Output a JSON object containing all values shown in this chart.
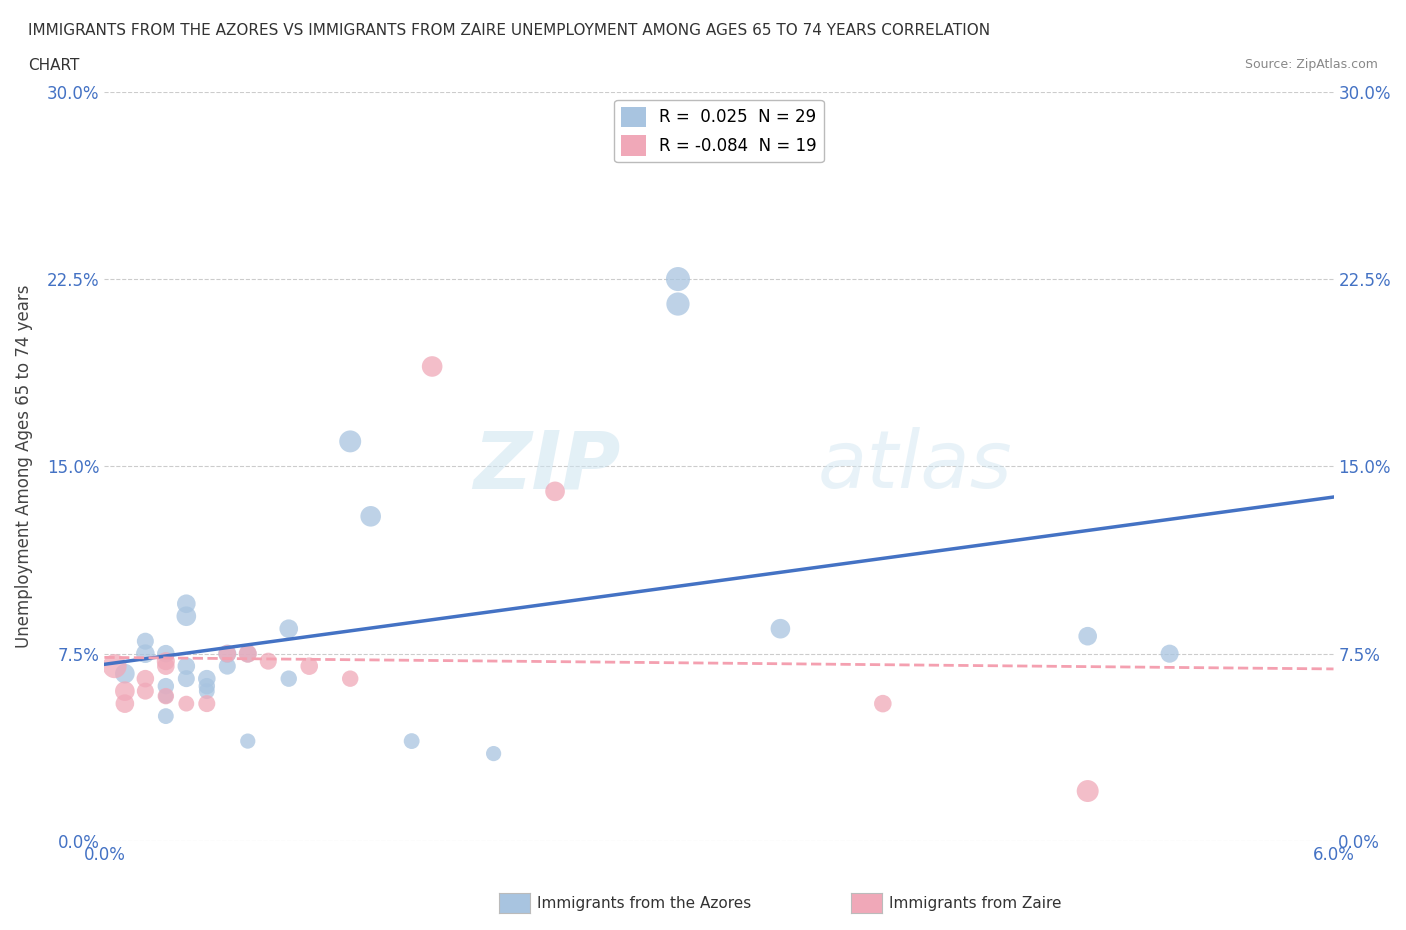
{
  "title_line1": "IMMIGRANTS FROM THE AZORES VS IMMIGRANTS FROM ZAIRE UNEMPLOYMENT AMONG AGES 65 TO 74 YEARS CORRELATION",
  "title_line2": "CHART",
  "source": "Source: ZipAtlas.com",
  "ylabel": "Unemployment Among Ages 65 to 74 years",
  "xlim": [
    0.0,
    0.06
  ],
  "ylim": [
    0.0,
    0.3
  ],
  "yticks": [
    0.0,
    0.075,
    0.15,
    0.225,
    0.3
  ],
  "ytick_labels": [
    "0.0%",
    "7.5%",
    "15.0%",
    "22.5%",
    "30.0%"
  ],
  "background_color": "#ffffff",
  "grid_color": "#cccccc",
  "azores_color": "#a8c4e0",
  "zaire_color": "#f0a8b8",
  "azores_line_color": "#4472c4",
  "zaire_line_color": "#f4a0b0",
  "legend_R_azores": "R =  0.025",
  "legend_N_azores": "N = 29",
  "legend_R_zaire": "R = -0.084",
  "legend_N_zaire": "N = 19",
  "watermark_zip": "ZIP",
  "watermark_atlas": "atlas",
  "azores_x": [
    0.001,
    0.002,
    0.002,
    0.003,
    0.003,
    0.003,
    0.003,
    0.004,
    0.004,
    0.004,
    0.004,
    0.005,
    0.005,
    0.005,
    0.006,
    0.006,
    0.007,
    0.007,
    0.009,
    0.009,
    0.012,
    0.013,
    0.015,
    0.019,
    0.028,
    0.028,
    0.033,
    0.048,
    0.052
  ],
  "azores_y": [
    0.067,
    0.08,
    0.075,
    0.075,
    0.062,
    0.058,
    0.05,
    0.09,
    0.095,
    0.07,
    0.065,
    0.062,
    0.065,
    0.06,
    0.075,
    0.07,
    0.04,
    0.075,
    0.085,
    0.065,
    0.16,
    0.13,
    0.04,
    0.035,
    0.225,
    0.215,
    0.085,
    0.082,
    0.075
  ],
  "azores_sizes": [
    200,
    150,
    180,
    160,
    140,
    120,
    130,
    200,
    180,
    160,
    150,
    140,
    160,
    130,
    170,
    150,
    120,
    160,
    180,
    140,
    250,
    220,
    130,
    120,
    300,
    280,
    200,
    180,
    170
  ],
  "zaire_x": [
    0.0005,
    0.001,
    0.001,
    0.002,
    0.002,
    0.003,
    0.003,
    0.003,
    0.004,
    0.005,
    0.006,
    0.007,
    0.008,
    0.01,
    0.012,
    0.016,
    0.022,
    0.038,
    0.048
  ],
  "zaire_y": [
    0.07,
    0.06,
    0.055,
    0.065,
    0.06,
    0.072,
    0.058,
    0.07,
    0.055,
    0.055,
    0.075,
    0.075,
    0.072,
    0.07,
    0.065,
    0.19,
    0.14,
    0.055,
    0.02
  ],
  "zaire_sizes": [
    300,
    200,
    180,
    160,
    150,
    170,
    140,
    160,
    130,
    150,
    160,
    170,
    150,
    160,
    140,
    220,
    200,
    160,
    250
  ]
}
